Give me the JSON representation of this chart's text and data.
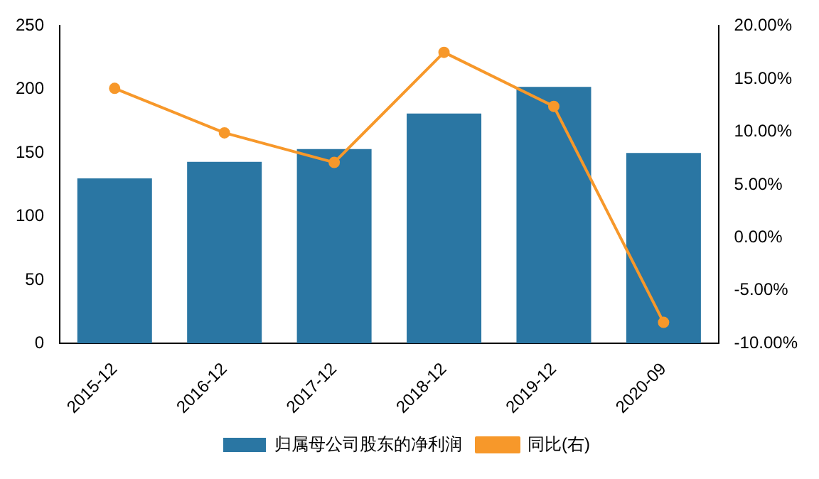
{
  "chart_data": {
    "type": "bar",
    "categories": [
      "2015-12",
      "2016-12",
      "2017-12",
      "2018-12",
      "2019-12",
      "2020-09"
    ],
    "series": [
      {
        "name": "归属母公司股东的净利润",
        "color": "#2a76a3",
        "values": [
          130,
          143,
          153,
          181,
          202,
          150
        ]
      },
      {
        "name": "同比(右)",
        "type": "line",
        "axis": "y2",
        "color": "#f7982a",
        "values": [
          14.1,
          9.9,
          7.1,
          17.5,
          12.4,
          -8.0
        ]
      }
    ],
    "ylim": [
      0,
      250
    ],
    "yticks": [
      0,
      50,
      100,
      150,
      200,
      250
    ],
    "y2lim": [
      -10,
      20
    ],
    "y2ticks": [
      {
        "value": -10,
        "label": "-10.00%"
      },
      {
        "value": -5,
        "label": "-5.00%"
      },
      {
        "value": 0,
        "label": "0.00%"
      },
      {
        "value": 5,
        "label": "5.00%"
      },
      {
        "value": 10,
        "label": "10.00%"
      },
      {
        "value": 15,
        "label": "15.00%"
      },
      {
        "value": 20,
        "label": "20.00%"
      }
    ],
    "grid": false,
    "legend": "bottom",
    "marker": "circle"
  }
}
